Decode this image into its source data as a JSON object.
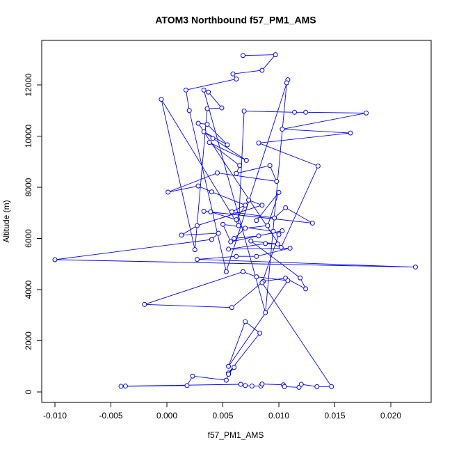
{
  "chart_data": {
    "type": "line",
    "title": "ATOM3 Northbound f57_PM1_AMS",
    "x_label": "f57_PM1_AMS",
    "y_label": "Altitude (m)",
    "color": "#0000ff",
    "markers": true,
    "xlim": [
      -0.01118,
      0.0236
    ],
    "ylim": [
      -408,
      13741
    ],
    "xticks": [
      {
        "value": -0.01,
        "label": "-0.010"
      },
      -0.005,
      {
        "value": 0,
        "label": "0.000"
      },
      0.005,
      {
        "value": 0.01,
        "label": "0.010"
      },
      0.015,
      {
        "value": 0.02,
        "label": "0.020"
      }
    ],
    "yticks": [
      0,
      2000,
      4000,
      6000,
      8000,
      10000,
      12000
    ],
    "x": [
      0.0068,
      0.0097,
      0.0085,
      0.0059,
      0.0062,
      0.0017,
      0.002,
      0.0053,
      0.0108,
      0.0107,
      0.0088,
      0.0033,
      0.0037,
      0.0049,
      0.0036,
      0.0025,
      -0.0005,
      0.0064,
      0.0069,
      0.0114,
      0.0124,
      0.0178,
      0.0103,
      0.0164,
      0.0082,
      0.0135,
      0.0102,
      0.0028,
      0.0036,
      0.0054,
      0.0033,
      0.0041,
      0.0071,
      0.0038,
      0.0065,
      0.0062,
      0.0092,
      0.0098,
      0.0045,
      0.0001,
      0.0028,
      0.004,
      0.007,
      0.0058,
      0.0096,
      0.0106,
      0.013,
      0.0033,
      0.0039,
      0.0062,
      0.0073,
      0.0085,
      0.0027,
      0.0013,
      0.0046,
      0.004,
      -0.01,
      0.0222,
      0.0027,
      0.0062,
      0.008,
      0.011,
      0.0055,
      0.0088,
      0.0099,
      0.0075,
      0.0119,
      0.0124,
      0.0106,
      0.0086,
      0.0058,
      -0.002,
      0.0068,
      0.008,
      0.0108,
      0.0055,
      0.007,
      0.0083,
      0.0055,
      0.006,
      0.0055,
      0.0053,
      0.0023,
      0.0018,
      -0.0041,
      -0.0037,
      0.0066,
      0.007,
      0.0076,
      0.0084,
      0.0085,
      0.0104,
      0.0105,
      0.0118,
      0.012,
      0.0134,
      0.0147,
      0.0085,
      0.01,
      0.0095,
      0.005,
      0.0057,
      0.0103,
      0.0082,
      0.006,
      0.007,
      0.009,
      0.01,
      0.008
    ],
    "values": [
      13150,
      13180,
      12570,
      12430,
      12230,
      11800,
      11000,
      4700,
      12200,
      12080,
      3100,
      11800,
      11720,
      11100,
      11070,
      5560,
      11440,
      6500,
      10980,
      10930,
      10930,
      10900,
      10270,
      10120,
      9730,
      8830,
      5650,
      10500,
      10460,
      9660,
      10170,
      9910,
      9050,
      9750,
      8850,
      8540,
      8850,
      8230,
      8560,
      7810,
      8050,
      7820,
      7300,
      7040,
      6800,
      7200,
      6600,
      7060,
      7040,
      6730,
      7500,
      7300,
      6500,
      6130,
      6200,
      5960,
      5170,
      4880,
      5180,
      5300,
      5300,
      5620,
      5580,
      5800,
      5780,
      5900,
      4460,
      4030,
      4450,
      4320,
      3300,
      3420,
      4700,
      4500,
      4350,
      1000,
      2750,
      2300,
      740,
      960,
      690,
      460,
      620,
      250,
      220,
      230,
      300,
      250,
      230,
      230,
      310,
      280,
      210,
      180,
      300,
      210,
      210,
      4270,
      6150,
      6280,
      6550,
      5870,
      6300,
      6100,
      6000,
      6400,
      6500,
      7800,
      6700
    ]
  }
}
